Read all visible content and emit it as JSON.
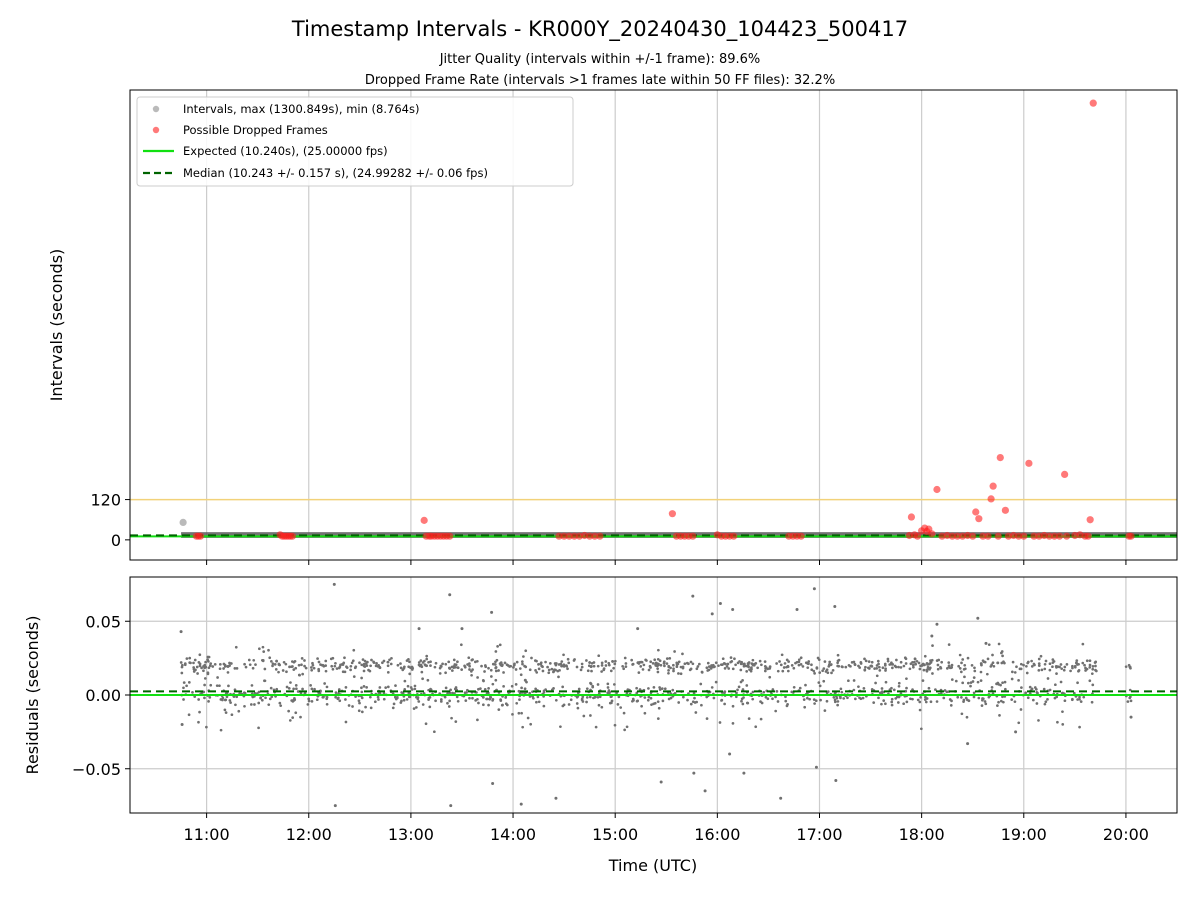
{
  "figure": {
    "title": "Timestamp Intervals - KR000Y_20240430_104423_500417",
    "subtitle_1": "Jitter Quality (intervals within +/-1 frame): 89.6%",
    "subtitle_2": "Dropped Frame Rate (intervals >1 frames late within 50 FF files): 32.2%"
  },
  "colors": {
    "intervals": "#8c8c8c",
    "dropped": "#ff2020",
    "expected": "#11e011",
    "median": "#006400",
    "threshold": "#f2d27a",
    "grid": "#cccccc",
    "residual_points": "#707070"
  },
  "chart_data": [
    {
      "type": "scatter",
      "panel": "top",
      "xlabel": "",
      "ylabel": "Intervals (seconds)",
      "x_unit": "hours UTC",
      "xlim": [
        10.25,
        20.5
      ],
      "ylim": [
        -60,
        1340
      ],
      "yticks": [
        0,
        120
      ],
      "ytick_labels": [
        "0",
        "120"
      ],
      "grid": "x only",
      "legend": {
        "placement": "top-left",
        "entries": [
          {
            "label": "Intervals, max (1300.849s), min (8.764s)",
            "marker": "gray-dot"
          },
          {
            "label": "Possible Dropped Frames",
            "marker": "red-dot"
          },
          {
            "label": "Expected (10.240s), (25.00000 fps)",
            "marker": "green-line"
          },
          {
            "label": "Median (10.243 +/- 0.157 s), (24.99282 +/- 0.06 fps)",
            "marker": "dark-green-dash"
          }
        ]
      },
      "reference_lines": {
        "expected": 10.24,
        "median": 10.243,
        "threshold": 120
      },
      "series": [
        {
          "name": "Intervals, max (1300.849s), min (8.764s)",
          "band": {
            "x_start": 10.75,
            "x_end": 20.5,
            "y_low": 8.764,
            "y_high": 20
          },
          "x": [
            10.77
          ],
          "y": [
            52
          ]
        },
        {
          "name": "Possible Dropped Frames",
          "x": [
            10.9,
            10.92,
            10.94,
            11.72,
            11.74,
            11.76,
            11.78,
            11.8,
            11.82,
            11.84,
            13.13,
            13.15,
            13.18,
            13.2,
            13.23,
            13.26,
            13.29,
            13.32,
            13.35,
            13.38,
            14.45,
            14.5,
            14.55,
            14.6,
            14.65,
            14.7,
            14.75,
            14.8,
            14.85,
            15.56,
            15.6,
            15.64,
            15.68,
            15.72,
            15.76,
            16.0,
            16.04,
            16.08,
            16.12,
            16.16,
            16.7,
            16.74,
            16.78,
            16.82,
            17.88,
            17.9,
            17.93,
            17.96,
            18.0,
            18.03,
            18.05,
            18.07,
            18.1,
            18.15,
            18.2,
            18.25,
            18.3,
            18.35,
            18.4,
            18.45,
            18.5,
            18.53,
            18.56,
            18.6,
            18.65,
            18.68,
            18.7,
            18.75,
            18.77,
            18.82,
            18.85,
            18.9,
            18.95,
            19.0,
            19.05,
            19.1,
            19.15,
            19.2,
            19.25,
            19.3,
            19.35,
            19.4,
            19.42,
            19.5,
            19.55,
            19.6,
            19.63,
            19.65,
            19.68,
            20.03,
            20.05
          ],
          "y": [
            11,
            11,
            11,
            15,
            11,
            11,
            11,
            11,
            11,
            11,
            58,
            11,
            11,
            11,
            11,
            11,
            11,
            11,
            11,
            11,
            11,
            11,
            11,
            11,
            11,
            13,
            11,
            11,
            11,
            78,
            11,
            11,
            11,
            11,
            11,
            15,
            11,
            11,
            11,
            11,
            11,
            11,
            11,
            11,
            13,
            68,
            15,
            11,
            27,
            35,
            25,
            32,
            18,
            150,
            11,
            13,
            11,
            11,
            11,
            13,
            11,
            83,
            63,
            11,
            11,
            122,
            160,
            11,
            245,
            88,
            11,
            13,
            11,
            11,
            228,
            11,
            11,
            13,
            11,
            11,
            11,
            195,
            11,
            13,
            15,
            11,
            11,
            60,
            1300.849,
            11,
            11
          ]
        }
      ]
    },
    {
      "type": "scatter",
      "panel": "bottom",
      "xlabel": "Time (UTC)",
      "ylabel": "Residuals (seconds)",
      "xlim": [
        10.25,
        20.5
      ],
      "ylim": [
        -0.08,
        0.08
      ],
      "xticks": [
        11,
        12,
        13,
        14,
        15,
        16,
        17,
        18,
        19,
        20
      ],
      "xtick_labels": [
        "11:00",
        "12:00",
        "13:00",
        "14:00",
        "15:00",
        "16:00",
        "17:00",
        "18:00",
        "19:00",
        "20:00"
      ],
      "yticks": [
        0.05,
        0.0,
        -0.05
      ],
      "ytick_labels": [
        "0.05",
        "0.00",
        "−0.05"
      ],
      "grid": "both",
      "reference_lines": {
        "expected": 0.0,
        "median": 0.0025
      },
      "series": [
        {
          "name": "",
          "x": [
            10.75,
            10.76,
            12.25,
            12.26,
            13.08,
            13.38,
            13.39,
            13.5,
            13.79,
            13.8,
            14.08,
            14.12,
            14.42,
            15.22,
            15.45,
            15.76,
            15.77,
            15.88,
            15.95,
            16.03,
            16.12,
            16.15,
            16.26,
            16.62,
            16.78,
            16.95,
            16.97,
            17.15,
            17.16,
            18.1,
            18.15,
            18.45,
            18.55,
            18.63,
            18.92,
            20.04,
            20.05
          ],
          "y": [
            0.043,
            -0.02,
            0.075,
            -0.075,
            0.045,
            0.068,
            -0.075,
            0.045,
            0.056,
            -0.06,
            -0.074,
            0.01,
            -0.07,
            0.045,
            -0.059,
            0.067,
            -0.053,
            -0.065,
            0.055,
            0.062,
            -0.04,
            0.058,
            -0.053,
            -0.07,
            0.058,
            0.072,
            -0.049,
            0.06,
            -0.058,
            0.04,
            0.048,
            -0.033,
            0.052,
            0.035,
            -0.025,
            0.019,
            -0.015
          ],
          "dense_band": {
            "x_start": 10.75,
            "x_end": 20.05,
            "upper_level": 0.02,
            "lower_level": 0.0,
            "spread": 0.015
          }
        }
      ]
    }
  ]
}
